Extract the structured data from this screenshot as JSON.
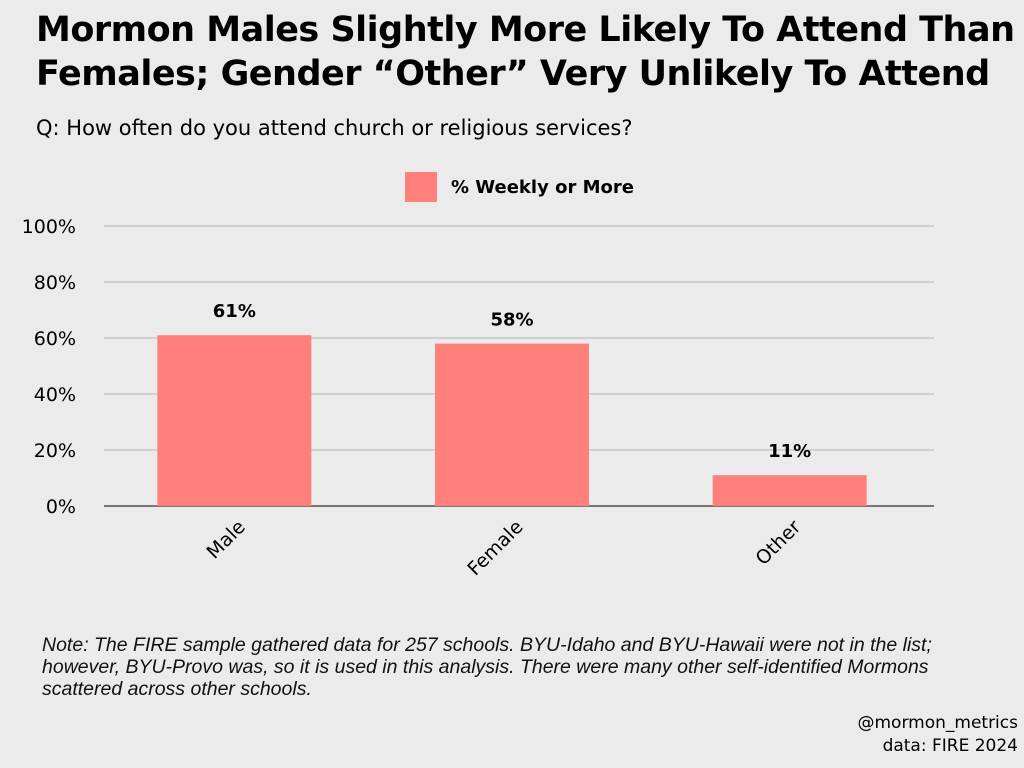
{
  "title": "Mormon Males Slightly More Likely To Attend Than Females; Gender “Other” Very Unlikely To Attend",
  "subtitle": "Q: How often do you attend church or religious services?",
  "note": "Note: The FIRE sample gathered data for 257 schools. BYU-Idaho and BYU-Hawaii were not in the list; however, BYU-Provo was, so it is used in this analysis. There were many other self-identified Mormons scattered across other schools.",
  "credit": {
    "handle": "@mormon_metrics",
    "source": "data: FIRE 2024"
  },
  "colors": {
    "bar": "#ff7f7b",
    "grid": "#b4b4b4",
    "background": "#ebebeb"
  },
  "chart_data": {
    "type": "bar",
    "categories": [
      "Male",
      "Female",
      "Other"
    ],
    "series": [
      {
        "name": "% Weekly or More",
        "values": [
          61,
          58,
          11
        ]
      }
    ],
    "data_labels": [
      "61%",
      "58%",
      "11%"
    ],
    "ylim": [
      0,
      100
    ],
    "yticks": [
      0,
      20,
      40,
      60,
      80,
      100
    ],
    "ytick_labels": [
      "0%",
      "20%",
      "40%",
      "60%",
      "80%",
      "100%"
    ],
    "legend": "top-center",
    "grid": true
  }
}
